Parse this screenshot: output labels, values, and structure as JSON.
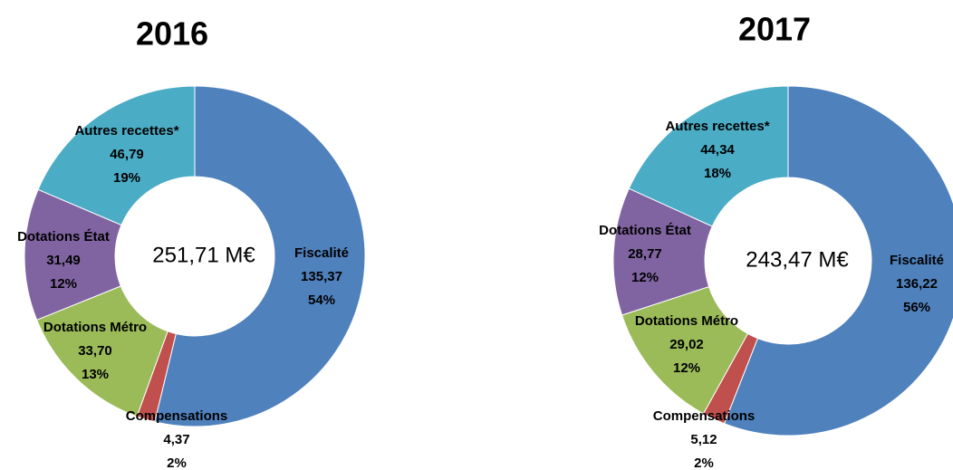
{
  "chart_data": [
    {
      "type": "donut",
      "title": "2016",
      "center_label": "251,71 M€",
      "categories": [
        "Fiscalité",
        "Compensations",
        "Dotations Métro",
        "Dotations État",
        "Autres recettes*"
      ],
      "values": [
        135.37,
        4.37,
        33.7,
        31.49,
        46.79
      ],
      "value_labels": [
        "135,37",
        "4,37",
        "33,70",
        "31,49",
        "46,79"
      ],
      "percent_labels": [
        "54%",
        "2%",
        "13%",
        "12%",
        "19%"
      ],
      "colors": [
        "#4f81bd",
        "#c0504d",
        "#9bbb59",
        "#8064a2",
        "#4bacc6"
      ]
    },
    {
      "type": "donut",
      "title": "2017",
      "center_label": "243,47 M€",
      "categories": [
        "Fiscalité",
        "Compensations",
        "Dotations Métro",
        "Dotations État",
        "Autres recettes*"
      ],
      "values": [
        136.22,
        5.12,
        29.02,
        28.77,
        44.34
      ],
      "value_labels": [
        "136,22",
        "5,12",
        "29,02",
        "28,77",
        "44,34"
      ],
      "percent_labels": [
        "56%",
        "2%",
        "12%",
        "12%",
        "18%"
      ],
      "colors": [
        "#4f81bd",
        "#c0504d",
        "#9bbb59",
        "#8064a2",
        "#4bacc6"
      ]
    }
  ]
}
